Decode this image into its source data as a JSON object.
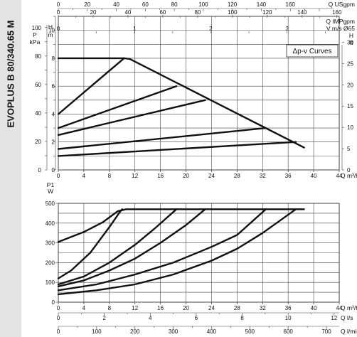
{
  "model_label": "EVOPLUS B 80/340.65 M",
  "legend_box_label": "Δp-v Curves",
  "colors": {
    "curve": "#111111",
    "grid": "#444444",
    "side_band": "#e3e3e3"
  },
  "chart_data": [
    {
      "type": "line",
      "name": "head-curves",
      "title": "",
      "x_axis": {
        "label": "Q m³/h",
        "min": 0,
        "max": 44,
        "ticks": [
          0,
          4,
          8,
          12,
          16,
          20,
          24,
          28,
          32,
          36,
          40,
          44
        ]
      },
      "y_left_H": {
        "label": "H m",
        "min": 0,
        "max": 11,
        "ticks": [
          0,
          2,
          4,
          6,
          8,
          10
        ],
        "gridlines": [
          0,
          1,
          2,
          3,
          4,
          5,
          6,
          7,
          8,
          9,
          10,
          11
        ]
      },
      "y_left_P": {
        "label": "P kPa",
        "ticks": [
          0,
          20,
          40,
          60,
          80,
          100
        ]
      },
      "y_right_H_ft": {
        "label": "H ft",
        "ticks": [
          0,
          5,
          10,
          15,
          20,
          25,
          30,
          35
        ]
      },
      "top_scales": [
        {
          "label": "Q USgpm",
          "ticks": [
            0,
            20,
            40,
            60,
            80,
            100,
            120,
            140,
            160
          ]
        },
        {
          "label": "Q IMPgpm",
          "ticks": [
            0,
            20,
            40,
            60,
            80,
            100,
            120,
            140,
            160
          ]
        },
        {
          "label": "V m/s Ø65",
          "ticks": [
            0,
            1,
            2,
            3,
            4,
            5
          ]
        }
      ],
      "series": [
        {
          "points": [
            [
              0,
              8
            ],
            [
              10.3,
              8
            ],
            [
              11.2,
              7.95
            ],
            [
              38.5,
              1.6
            ]
          ]
        },
        {
          "points": [
            [
              0,
              4
            ],
            [
              10.3,
              8
            ]
          ]
        },
        {
          "points": [
            [
              0,
              3
            ],
            [
              18.5,
              6
            ]
          ]
        },
        {
          "points": [
            [
              0,
              2.5
            ],
            [
              23,
              5
            ]
          ]
        },
        {
          "points": [
            [
              0,
              1.5
            ],
            [
              32.5,
              3
            ]
          ]
        },
        {
          "points": [
            [
              0,
              1
            ],
            [
              37.2,
              2
            ]
          ]
        }
      ],
      "grid": true
    },
    {
      "type": "line",
      "name": "power-curves",
      "title": "",
      "x_axis": {
        "label": "Q m³/h",
        "min": 0,
        "max": 44,
        "ticks": [
          0,
          4,
          8,
          12,
          16,
          20,
          24,
          28,
          32,
          36,
          40,
          44
        ]
      },
      "y_left": {
        "label": "P1 W",
        "min": 0,
        "max": 500,
        "ticks": [
          0,
          100,
          200,
          300,
          400,
          500
        ]
      },
      "bottom_scales": [
        {
          "label": "Q l/s",
          "ticks": [
            0,
            2,
            4,
            6,
            8,
            10,
            12
          ]
        },
        {
          "label": "Q l/min",
          "ticks": [
            0,
            100,
            200,
            300,
            400,
            500,
            600,
            700
          ]
        }
      ],
      "series": [
        {
          "points": [
            [
              0,
              305
            ],
            [
              4,
              355
            ],
            [
              7,
              405
            ],
            [
              9.3,
              460
            ],
            [
              10.6,
              470
            ],
            [
              38.5,
              470
            ]
          ]
        },
        {
          "points": [
            [
              0,
              120
            ],
            [
              2,
              160
            ],
            [
              5,
              250
            ],
            [
              8,
              380
            ],
            [
              9.5,
              450
            ],
            [
              10,
              470
            ]
          ]
        },
        {
          "points": [
            [
              0,
              90
            ],
            [
              4,
              130
            ],
            [
              8,
              200
            ],
            [
              12,
              290
            ],
            [
              15,
              370
            ],
            [
              18.5,
              470
            ]
          ]
        },
        {
          "points": [
            [
              0,
              80
            ],
            [
              4,
              110
            ],
            [
              8,
              160
            ],
            [
              12,
              220
            ],
            [
              16,
              300
            ],
            [
              20,
              390
            ],
            [
              23,
              470
            ]
          ]
        },
        {
          "points": [
            [
              0,
              60
            ],
            [
              6,
              90
            ],
            [
              12,
              140
            ],
            [
              18,
              200
            ],
            [
              24,
              280
            ],
            [
              28,
              340
            ],
            [
              32.5,
              470
            ]
          ]
        },
        {
          "points": [
            [
              0,
              40
            ],
            [
              6,
              60
            ],
            [
              12,
              90
            ],
            [
              18,
              140
            ],
            [
              24,
              210
            ],
            [
              28,
              270
            ],
            [
              32,
              350
            ],
            [
              37.2,
              470
            ]
          ]
        }
      ],
      "grid": true
    }
  ]
}
